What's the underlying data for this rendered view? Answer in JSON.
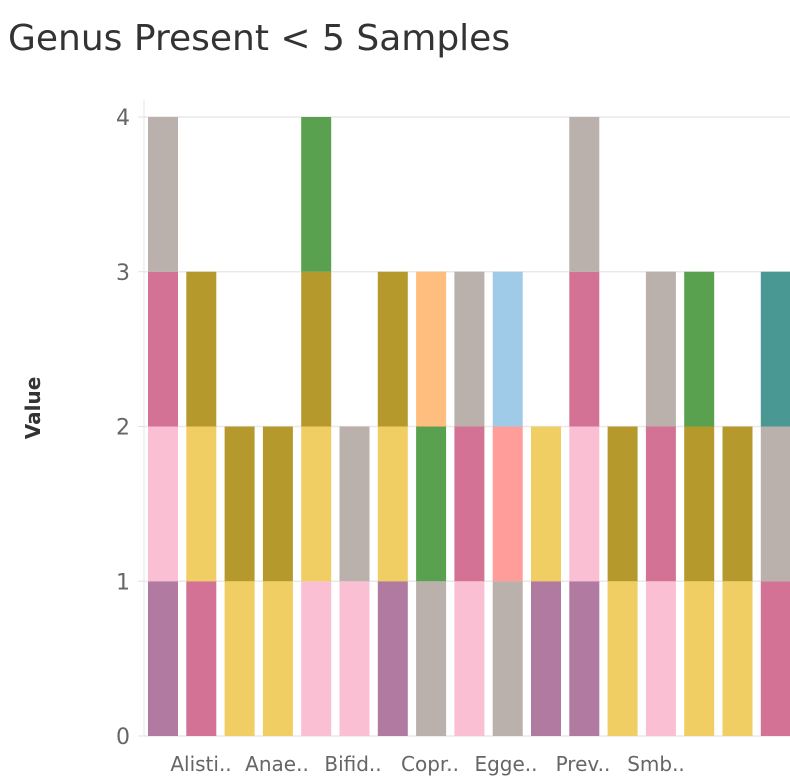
{
  "chart_data": {
    "type": "bar",
    "stacked": true,
    "title": "Genus Present < 5 Samples",
    "xlabel": "",
    "ylabel": "Value",
    "ylim": [
      0,
      4.1
    ],
    "yticks": [
      0,
      1,
      2,
      3,
      4
    ],
    "grid": true,
    "x_tick_labels": [
      "Alisti..",
      "Anae..",
      "Bifid..",
      "Copr..",
      "Egge..",
      "Prev..",
      "Smb.."
    ],
    "colors": {
      "purple": "#B07AA1",
      "rose": "#D37295",
      "pink": "#FABFD2",
      "yellow": "#F1CE63",
      "olive": "#B6992D",
      "taupe": "#BAB0AC",
      "green": "#59A14F",
      "orange": "#FFBE7D",
      "lightblue": "#A0CBE8",
      "salmon": "#FF9D9A",
      "teal": "#499894"
    },
    "bars": [
      {
        "stack": [
          {
            "color": "purple",
            "value": 1
          },
          {
            "color": "pink",
            "value": 1
          },
          {
            "color": "rose",
            "value": 1
          },
          {
            "color": "taupe",
            "value": 1
          }
        ]
      },
      {
        "stack": [
          {
            "color": "rose",
            "value": 1
          },
          {
            "color": "yellow",
            "value": 1
          },
          {
            "color": "olive",
            "value": 1
          }
        ]
      },
      {
        "stack": [
          {
            "color": "yellow",
            "value": 1
          },
          {
            "color": "olive",
            "value": 1
          }
        ]
      },
      {
        "stack": [
          {
            "color": "yellow",
            "value": 1
          },
          {
            "color": "olive",
            "value": 1
          }
        ]
      },
      {
        "stack": [
          {
            "color": "pink",
            "value": 1
          },
          {
            "color": "yellow",
            "value": 1
          },
          {
            "color": "olive",
            "value": 1
          },
          {
            "color": "green",
            "value": 1
          }
        ]
      },
      {
        "stack": [
          {
            "color": "pink",
            "value": 1
          },
          {
            "color": "taupe",
            "value": 1
          }
        ]
      },
      {
        "stack": [
          {
            "color": "purple",
            "value": 1
          },
          {
            "color": "yellow",
            "value": 1
          },
          {
            "color": "olive",
            "value": 1
          }
        ]
      },
      {
        "stack": [
          {
            "color": "taupe",
            "value": 1
          },
          {
            "color": "green",
            "value": 1
          },
          {
            "color": "orange",
            "value": 1
          }
        ]
      },
      {
        "stack": [
          {
            "color": "pink",
            "value": 1
          },
          {
            "color": "rose",
            "value": 1
          },
          {
            "color": "taupe",
            "value": 1
          }
        ]
      },
      {
        "stack": [
          {
            "color": "taupe",
            "value": 1
          },
          {
            "color": "salmon",
            "value": 1
          },
          {
            "color": "lightblue",
            "value": 1
          }
        ]
      },
      {
        "stack": [
          {
            "color": "purple",
            "value": 1
          },
          {
            "color": "yellow",
            "value": 1
          }
        ]
      },
      {
        "stack": [
          {
            "color": "purple",
            "value": 1
          },
          {
            "color": "pink",
            "value": 1
          },
          {
            "color": "rose",
            "value": 1
          },
          {
            "color": "taupe",
            "value": 1
          }
        ]
      },
      {
        "stack": [
          {
            "color": "yellow",
            "value": 1
          },
          {
            "color": "olive",
            "value": 1
          }
        ]
      },
      {
        "stack": [
          {
            "color": "pink",
            "value": 1
          },
          {
            "color": "rose",
            "value": 1
          },
          {
            "color": "taupe",
            "value": 1
          }
        ]
      },
      {
        "stack": [
          {
            "color": "yellow",
            "value": 1
          },
          {
            "color": "olive",
            "value": 1
          },
          {
            "color": "green",
            "value": 1
          }
        ]
      },
      {
        "stack": [
          {
            "color": "yellow",
            "value": 1
          },
          {
            "color": "olive",
            "value": 1
          }
        ]
      },
      {
        "stack": [
          {
            "color": "rose",
            "value": 1
          },
          {
            "color": "taupe",
            "value": 1
          },
          {
            "color": "teal",
            "value": 1
          }
        ]
      }
    ]
  }
}
